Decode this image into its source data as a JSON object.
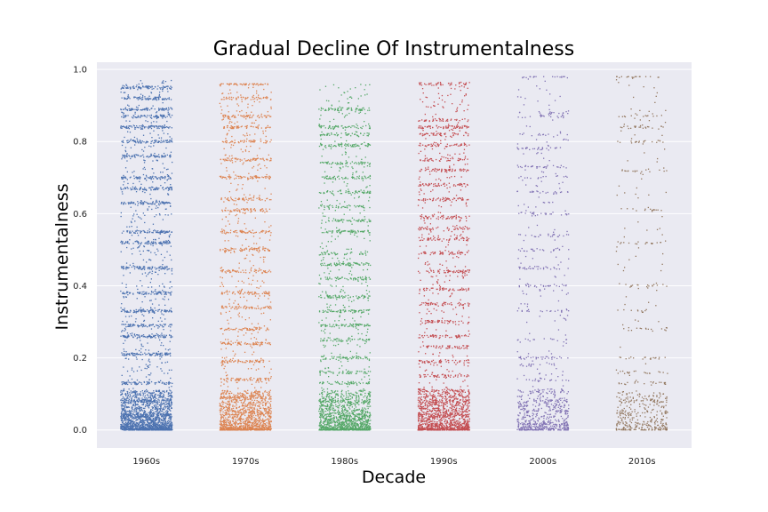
{
  "chart_data": {
    "type": "scatter",
    "subtype": "strip",
    "title": "Gradual Decline Of Instrumentalness",
    "xlabel": "Decade",
    "ylabel": "Instrumentalness",
    "categories": [
      "1960s",
      "1970s",
      "1980s",
      "1990s",
      "2000s",
      "2010s"
    ],
    "ylim": [
      -0.05,
      1.02
    ],
    "yticks": [
      "0.0",
      "0.2",
      "0.4",
      "0.6",
      "0.8",
      "1.0"
    ],
    "grid": true,
    "background": "#eaeaf2",
    "series": [
      {
        "category": "1960s",
        "color": "#4c72b0",
        "density": "very high",
        "bottom_heavy": true,
        "max_value": 0.97,
        "bands": [
          0.04,
          0.08,
          0.13,
          0.21,
          0.26,
          0.29,
          0.33,
          0.38,
          0.45,
          0.52,
          0.55,
          0.63,
          0.67,
          0.7,
          0.76,
          0.8,
          0.84,
          0.87,
          0.89,
          0.92,
          0.95
        ]
      },
      {
        "category": "1970s",
        "color": "#dd8452",
        "density": "high",
        "bottom_heavy": true,
        "max_value": 0.96,
        "bands": [
          0.05,
          0.09,
          0.14,
          0.19,
          0.24,
          0.28,
          0.34,
          0.38,
          0.44,
          0.5,
          0.55,
          0.61,
          0.64,
          0.7,
          0.75,
          0.8,
          0.84,
          0.87,
          0.92,
          0.96
        ]
      },
      {
        "category": "1980s",
        "color": "#55a868",
        "density": "high",
        "bottom_heavy": true,
        "max_value": 0.96,
        "bands": [
          0.04,
          0.08,
          0.13,
          0.16,
          0.2,
          0.25,
          0.29,
          0.33,
          0.37,
          0.42,
          0.46,
          0.49,
          0.55,
          0.58,
          0.62,
          0.66,
          0.7,
          0.74,
          0.79,
          0.82,
          0.84,
          0.89
        ]
      },
      {
        "category": "1990s",
        "color": "#c44e52",
        "density": "high",
        "bottom_heavy": true,
        "max_value": 0.97,
        "bands": [
          0.04,
          0.08,
          0.11,
          0.15,
          0.19,
          0.23,
          0.26,
          0.3,
          0.35,
          0.39,
          0.44,
          0.49,
          0.53,
          0.56,
          0.59,
          0.64,
          0.68,
          0.72,
          0.75,
          0.79,
          0.82,
          0.84,
          0.86,
          0.96
        ]
      },
      {
        "category": "2000s",
        "color": "#8172b3",
        "density": "medium",
        "bottom_heavy": true,
        "max_value": 0.98,
        "bands": [
          0.02,
          0.05,
          0.08,
          0.11,
          0.14,
          0.18,
          0.2,
          0.25,
          0.33,
          0.4,
          0.45,
          0.5,
          0.54,
          0.6,
          0.66,
          0.7,
          0.73,
          0.78,
          0.82,
          0.87,
          0.88,
          0.98
        ]
      },
      {
        "category": "2010s",
        "color": "#937860",
        "density": "low",
        "bottom_heavy": true,
        "max_value": 0.98,
        "bands": [
          0.02,
          0.05,
          0.08,
          0.13,
          0.16,
          0.2,
          0.28,
          0.33,
          0.4,
          0.52,
          0.61,
          0.72,
          0.8,
          0.84,
          0.87,
          0.98
        ]
      }
    ]
  }
}
